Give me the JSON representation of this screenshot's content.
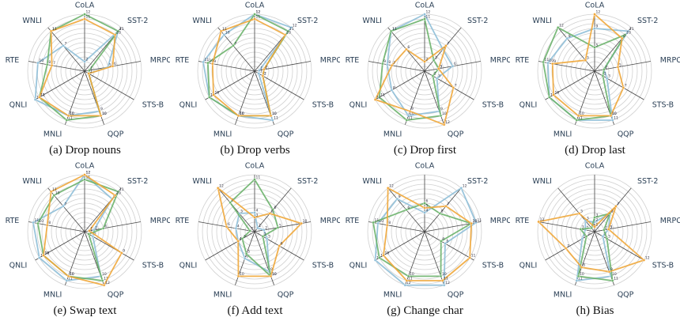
{
  "colors": {
    "blue": "#8fbfd8",
    "green": "#6cb36c",
    "orange": "#f0a73a"
  },
  "chart_data": [
    {
      "type": "radar",
      "caption": "(a) Drop nouns",
      "axes": [
        "CoLA",
        "SST-2",
        "MRPC",
        "STS-B",
        "QQP",
        "MNLI",
        "QNLI",
        "RTE",
        "WNLI"
      ],
      "rmax": 12,
      "series": [
        {
          "color": "blue",
          "values": [
            2,
            11,
            5,
            1,
            9,
            10,
            12,
            10,
            7
          ]
        },
        {
          "color": "green",
          "values": [
            12,
            11,
            1,
            1,
            10,
            11,
            11,
            8,
            11
          ]
        },
        {
          "color": "orange",
          "values": [
            11,
            10,
            6,
            1,
            10,
            10,
            11,
            7,
            11
          ]
        }
      ]
    },
    {
      "type": "radar",
      "caption": "(b) Drop verbs",
      "axes": [
        "CoLA",
        "SST-2",
        "MRPC",
        "STS-B",
        "QQP",
        "MNLI",
        "QNLI",
        "RTE",
        "WNLI"
      ],
      "rmax": 12,
      "series": [
        {
          "color": "blue",
          "values": [
            12,
            12,
            1,
            1,
            11,
            10,
            11,
            11,
            10
          ]
        },
        {
          "color": "green",
          "values": [
            12,
            11,
            2,
            2,
            10,
            10,
            11,
            10,
            7
          ]
        },
        {
          "color": "orange",
          "values": [
            11,
            10,
            2,
            2,
            10,
            10,
            10,
            9,
            11
          ]
        }
      ]
    },
    {
      "type": "radar",
      "caption": "(c) Drop first",
      "axes": [
        "CoLA",
        "SST-2",
        "MRPC",
        "STS-B",
        "QQP",
        "MNLI",
        "QNLI",
        "RTE",
        "WNLI"
      ],
      "rmax": 12,
      "series": [
        {
          "color": "blue",
          "values": [
            12,
            6,
            6,
            3,
            9,
            10,
            8,
            8,
            11
          ]
        },
        {
          "color": "green",
          "values": [
            11,
            3,
            3,
            2,
            10,
            11,
            11,
            9,
            11
          ]
        },
        {
          "color": "orange",
          "values": [
            2,
            7,
            3,
            7,
            12,
            9,
            12,
            7,
            6
          ]
        }
      ]
    },
    {
      "type": "radar",
      "caption": "(d) Drop last",
      "axes": [
        "CoLA",
        "SST-2",
        "MRPC",
        "STS-B",
        "QQP",
        "MNLI",
        "QNLI",
        "RTE",
        "WNLI"
      ],
      "rmax": 12,
      "series": [
        {
          "color": "blue",
          "values": [
            9,
            11,
            2,
            3,
            11,
            11,
            11,
            10,
            9
          ]
        },
        {
          "color": "green",
          "values": [
            5,
            10,
            2,
            2,
            10,
            11,
            11,
            11,
            12
          ]
        },
        {
          "color": "orange",
          "values": [
            12,
            9,
            5,
            7,
            10,
            10,
            10,
            9,
            3
          ]
        }
      ]
    },
    {
      "type": "radar",
      "caption": "(e) Swap text",
      "axes": [
        "CoLA",
        "SST-2",
        "MRPC",
        "STS-B",
        "QQP",
        "MNLI",
        "QNLI",
        "RTE",
        "WNLI"
      ],
      "rmax": 12,
      "series": [
        {
          "color": "blue",
          "values": [
            12,
            9,
            2,
            2,
            10,
            11,
            11,
            11,
            7
          ]
        },
        {
          "color": "green",
          "values": [
            11,
            11,
            4,
            1,
            11,
            10,
            10,
            10,
            10
          ]
        },
        {
          "color": "orange",
          "values": [
            12,
            10,
            1,
            9,
            12,
            10,
            10,
            8,
            11
          ]
        }
      ]
    },
    {
      "type": "radar",
      "caption": "(f) Add text",
      "axes": [
        "CoLA",
        "SST-2",
        "MRPC",
        "STS-B",
        "QQP",
        "MNLI",
        "QNLI",
        "RTE",
        "WNLI"
      ],
      "rmax": 12,
      "series": [
        {
          "color": "blue",
          "values": [
            4,
            1,
            2,
            3,
            9,
            6,
            4,
            4,
            5
          ]
        },
        {
          "color": "green",
          "values": [
            11,
            6,
            5,
            2,
            10,
            5,
            3,
            1,
            8
          ]
        },
        {
          "color": "orange",
          "values": [
            3,
            5,
            10,
            6,
            10,
            10,
            4,
            6,
            12
          ]
        }
      ]
    },
    {
      "type": "radar",
      "caption": "(g) Change char",
      "axes": [
        "CoLA",
        "SST-2",
        "MRPC",
        "STS-B",
        "QQP",
        "MNLI",
        "QNLI",
        "RTE",
        "WNLI"
      ],
      "rmax": 12,
      "series": [
        {
          "color": "blue",
          "values": [
            4,
            12,
            11,
            5,
            12,
            12,
            12,
            10,
            9
          ]
        },
        {
          "color": "green",
          "values": [
            6,
            5,
            10,
            4,
            10,
            10,
            11,
            11,
            6
          ]
        },
        {
          "color": "orange",
          "values": [
            5,
            7,
            10,
            11,
            11,
            11,
            10,
            8,
            12
          ]
        }
      ]
    },
    {
      "type": "radar",
      "caption": "(h) Bias",
      "axes": [
        "CoLA",
        "SST-2",
        "MRPC",
        "STS-B",
        "QQP",
        "MNLI",
        "QNLI",
        "RTE",
        "WNLI"
      ],
      "rmax": 12,
      "series": [
        {
          "color": "blue",
          "values": [
            2,
            5,
            3,
            2,
            10,
            11,
            3,
            2,
            3
          ]
        },
        {
          "color": "green",
          "values": [
            3,
            5,
            2,
            3,
            11,
            10,
            2,
            3,
            1
          ]
        },
        {
          "color": "orange",
          "values": [
            1,
            7,
            3,
            12,
            9,
            8,
            7,
            12,
            5
          ]
        }
      ]
    }
  ]
}
